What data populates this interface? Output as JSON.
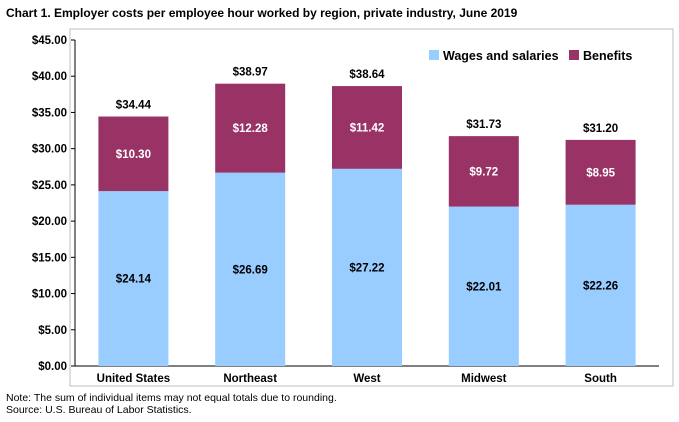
{
  "chart_data": {
    "type": "bar",
    "stacked": true,
    "title": "Chart 1. Employer costs per employee hour worked by region, private industry, June 2019",
    "categories": [
      "United States",
      "Northeast",
      "West",
      "Midwest",
      "South"
    ],
    "series": [
      {
        "name": "Wages and salaries",
        "color": "#99ccff",
        "values": [
          24.14,
          26.69,
          27.22,
          22.01,
          22.26
        ],
        "labels": [
          "$24.14",
          "$26.69",
          "$27.22",
          "$22.01",
          "$22.26"
        ]
      },
      {
        "name": "Benefits",
        "color": "#993366",
        "values": [
          10.3,
          12.28,
          11.42,
          9.72,
          8.95
        ],
        "labels": [
          "$10.30",
          "$12.28",
          "$11.42",
          "$9.72",
          "$8.95"
        ]
      }
    ],
    "totals": [
      34.44,
      38.97,
      38.64,
      31.73,
      31.2
    ],
    "total_labels": [
      "$34.44",
      "$38.97",
      "$38.64",
      "$31.73",
      "$31.20"
    ],
    "ylim": [
      0,
      45
    ],
    "yticks": [
      0,
      5,
      10,
      15,
      20,
      25,
      30,
      35,
      40,
      45
    ],
    "ytick_labels": [
      "$0.00",
      "$5.00",
      "$10.00",
      "$15.00",
      "$20.00",
      "$25.00",
      "$30.00",
      "$35.00",
      "$40.00",
      "$45.00"
    ],
    "legend_position": "top-right",
    "grid": false,
    "xlabel": "",
    "ylabel": ""
  },
  "notes": {
    "line1": "Note: The  sum of individual items may not equal totals due to rounding.",
    "line2": "Source: U.S. Bureau of Labor Statistics."
  }
}
